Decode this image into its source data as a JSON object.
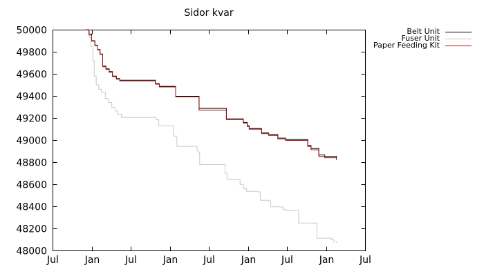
{
  "title": "Sidor kvar",
  "chart_data": {
    "type": "line",
    "title": "Sidor kvar",
    "style": "step-after",
    "grid": false,
    "legend_position": "top-right-outside",
    "x_axis": {
      "label": "",
      "unit": "months",
      "range_months": [
        0,
        48
      ],
      "tick_months": [
        0,
        6,
        12,
        18,
        24,
        30,
        36,
        42,
        48
      ],
      "tick_labels": [
        "Jul",
        "Jan",
        "Jul",
        "Jan",
        "Jul",
        "Jan",
        "Jul",
        "Jan",
        "Jul"
      ]
    },
    "y_axis": {
      "label": "",
      "min": 48000,
      "max": 50000,
      "tick_step": 200,
      "ticks": [
        48000,
        48200,
        48400,
        48600,
        48800,
        49000,
        49200,
        49400,
        49600,
        49800,
        50000
      ]
    },
    "series": [
      {
        "name": "Belt Unit",
        "color": "#000000",
        "points": [
          [
            5.2,
            50000
          ],
          [
            5.6,
            49960
          ],
          [
            6.0,
            49900
          ],
          [
            6.5,
            49860
          ],
          [
            6.9,
            49820
          ],
          [
            7.3,
            49780
          ],
          [
            7.7,
            49670
          ],
          [
            8.2,
            49645
          ],
          [
            8.7,
            49620
          ],
          [
            9.2,
            49580
          ],
          [
            9.8,
            49558
          ],
          [
            10.3,
            49542
          ],
          [
            15.5,
            49542
          ],
          [
            15.8,
            49512
          ],
          [
            16.4,
            49487
          ],
          [
            18.7,
            49487
          ],
          [
            18.9,
            49397
          ],
          [
            22.1,
            49397
          ],
          [
            22.5,
            49287
          ],
          [
            26.4,
            49287
          ],
          [
            26.7,
            49192
          ],
          [
            29.1,
            49192
          ],
          [
            29.3,
            49160
          ],
          [
            29.9,
            49130
          ],
          [
            30.2,
            49105
          ],
          [
            31.9,
            49105
          ],
          [
            32.1,
            49065
          ],
          [
            33.2,
            49050
          ],
          [
            34.6,
            49018
          ],
          [
            35.8,
            49005
          ],
          [
            39.0,
            49005
          ],
          [
            39.2,
            48952
          ],
          [
            39.7,
            48924
          ],
          [
            40.7,
            48924
          ],
          [
            40.9,
            48865
          ],
          [
            41.8,
            48852
          ],
          [
            43.6,
            48838
          ]
        ]
      },
      {
        "name": "Fuser Unit",
        "color": "#c8c8c8",
        "points": [
          [
            5.5,
            50000
          ],
          [
            5.7,
            49930
          ],
          [
            5.9,
            49850
          ],
          [
            6.2,
            49720
          ],
          [
            6.4,
            49580
          ],
          [
            6.7,
            49500
          ],
          [
            7.1,
            49460
          ],
          [
            7.5,
            49432
          ],
          [
            8.1,
            49377
          ],
          [
            8.6,
            49340
          ],
          [
            9.1,
            49296
          ],
          [
            9.6,
            49264
          ],
          [
            10.0,
            49234
          ],
          [
            10.6,
            49205
          ],
          [
            15.5,
            49205
          ],
          [
            15.9,
            49185
          ],
          [
            16.3,
            49128
          ],
          [
            18.3,
            49128
          ],
          [
            18.6,
            49036
          ],
          [
            19.1,
            48943
          ],
          [
            22.0,
            48943
          ],
          [
            22.2,
            48905
          ],
          [
            22.4,
            48890
          ],
          [
            22.6,
            48779
          ],
          [
            26.1,
            48779
          ],
          [
            26.5,
            48700
          ],
          [
            26.8,
            48642
          ],
          [
            28.4,
            48642
          ],
          [
            28.8,
            48598
          ],
          [
            29.3,
            48560
          ],
          [
            29.8,
            48536
          ],
          [
            31.6,
            48530
          ],
          [
            31.9,
            48455
          ],
          [
            33.2,
            48450
          ],
          [
            33.5,
            48395
          ],
          [
            35.2,
            48393
          ],
          [
            35.4,
            48374
          ],
          [
            35.7,
            48361
          ],
          [
            37.5,
            48361
          ],
          [
            37.8,
            48249
          ],
          [
            40.4,
            48249
          ],
          [
            40.6,
            48112
          ],
          [
            42.6,
            48112
          ],
          [
            42.8,
            48098
          ],
          [
            43.2,
            48081
          ],
          [
            43.6,
            48070
          ]
        ]
      },
      {
        "name": "Paper Feeding Kit",
        "color": "#a01010",
        "points": [
          [
            5.2,
            50000
          ],
          [
            5.6,
            49952
          ],
          [
            6.0,
            49896
          ],
          [
            6.5,
            49856
          ],
          [
            6.9,
            49816
          ],
          [
            7.3,
            49776
          ],
          [
            7.7,
            49664
          ],
          [
            8.2,
            49640
          ],
          [
            8.7,
            49614
          ],
          [
            9.2,
            49575
          ],
          [
            9.8,
            49552
          ],
          [
            10.3,
            49536
          ],
          [
            15.5,
            49536
          ],
          [
            15.8,
            49506
          ],
          [
            16.4,
            49481
          ],
          [
            18.7,
            49481
          ],
          [
            18.9,
            49391
          ],
          [
            22.1,
            49391
          ],
          [
            22.5,
            49270
          ],
          [
            26.4,
            49270
          ],
          [
            26.7,
            49186
          ],
          [
            29.1,
            49186
          ],
          [
            29.3,
            49154
          ],
          [
            29.9,
            49124
          ],
          [
            30.2,
            49098
          ],
          [
            31.9,
            49098
          ],
          [
            32.1,
            49058
          ],
          [
            33.2,
            49042
          ],
          [
            34.6,
            49010
          ],
          [
            35.8,
            48997
          ],
          [
            39.0,
            48997
          ],
          [
            39.2,
            48942
          ],
          [
            39.7,
            48912
          ],
          [
            40.7,
            48912
          ],
          [
            40.9,
            48852
          ],
          [
            41.8,
            48840
          ],
          [
            43.6,
            48820
          ]
        ]
      }
    ]
  }
}
